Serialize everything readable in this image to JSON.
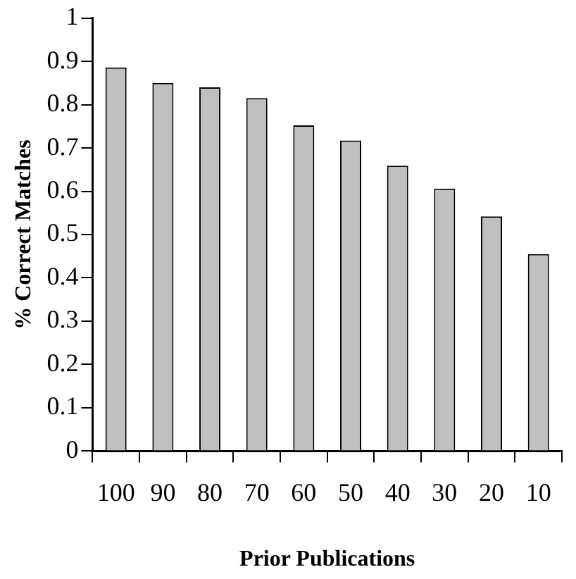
{
  "chart_data": {
    "type": "bar",
    "xlabel": "Prior Publications",
    "ylabel": "% Correct Matches",
    "categories": [
      "100",
      "90",
      "80",
      "70",
      "60",
      "50",
      "40",
      "30",
      "20",
      "10"
    ],
    "values": [
      0.886,
      0.85,
      0.84,
      0.815,
      0.752,
      0.717,
      0.659,
      0.606,
      0.542,
      0.455
    ],
    "color": "#c0c0c0",
    "ylim": [
      0,
      1
    ],
    "yticks": [
      0,
      0.1,
      0.2,
      0.3,
      0.4,
      0.5,
      0.6,
      0.7,
      0.8,
      0.9,
      1
    ],
    "grid": false,
    "legend": false
  }
}
